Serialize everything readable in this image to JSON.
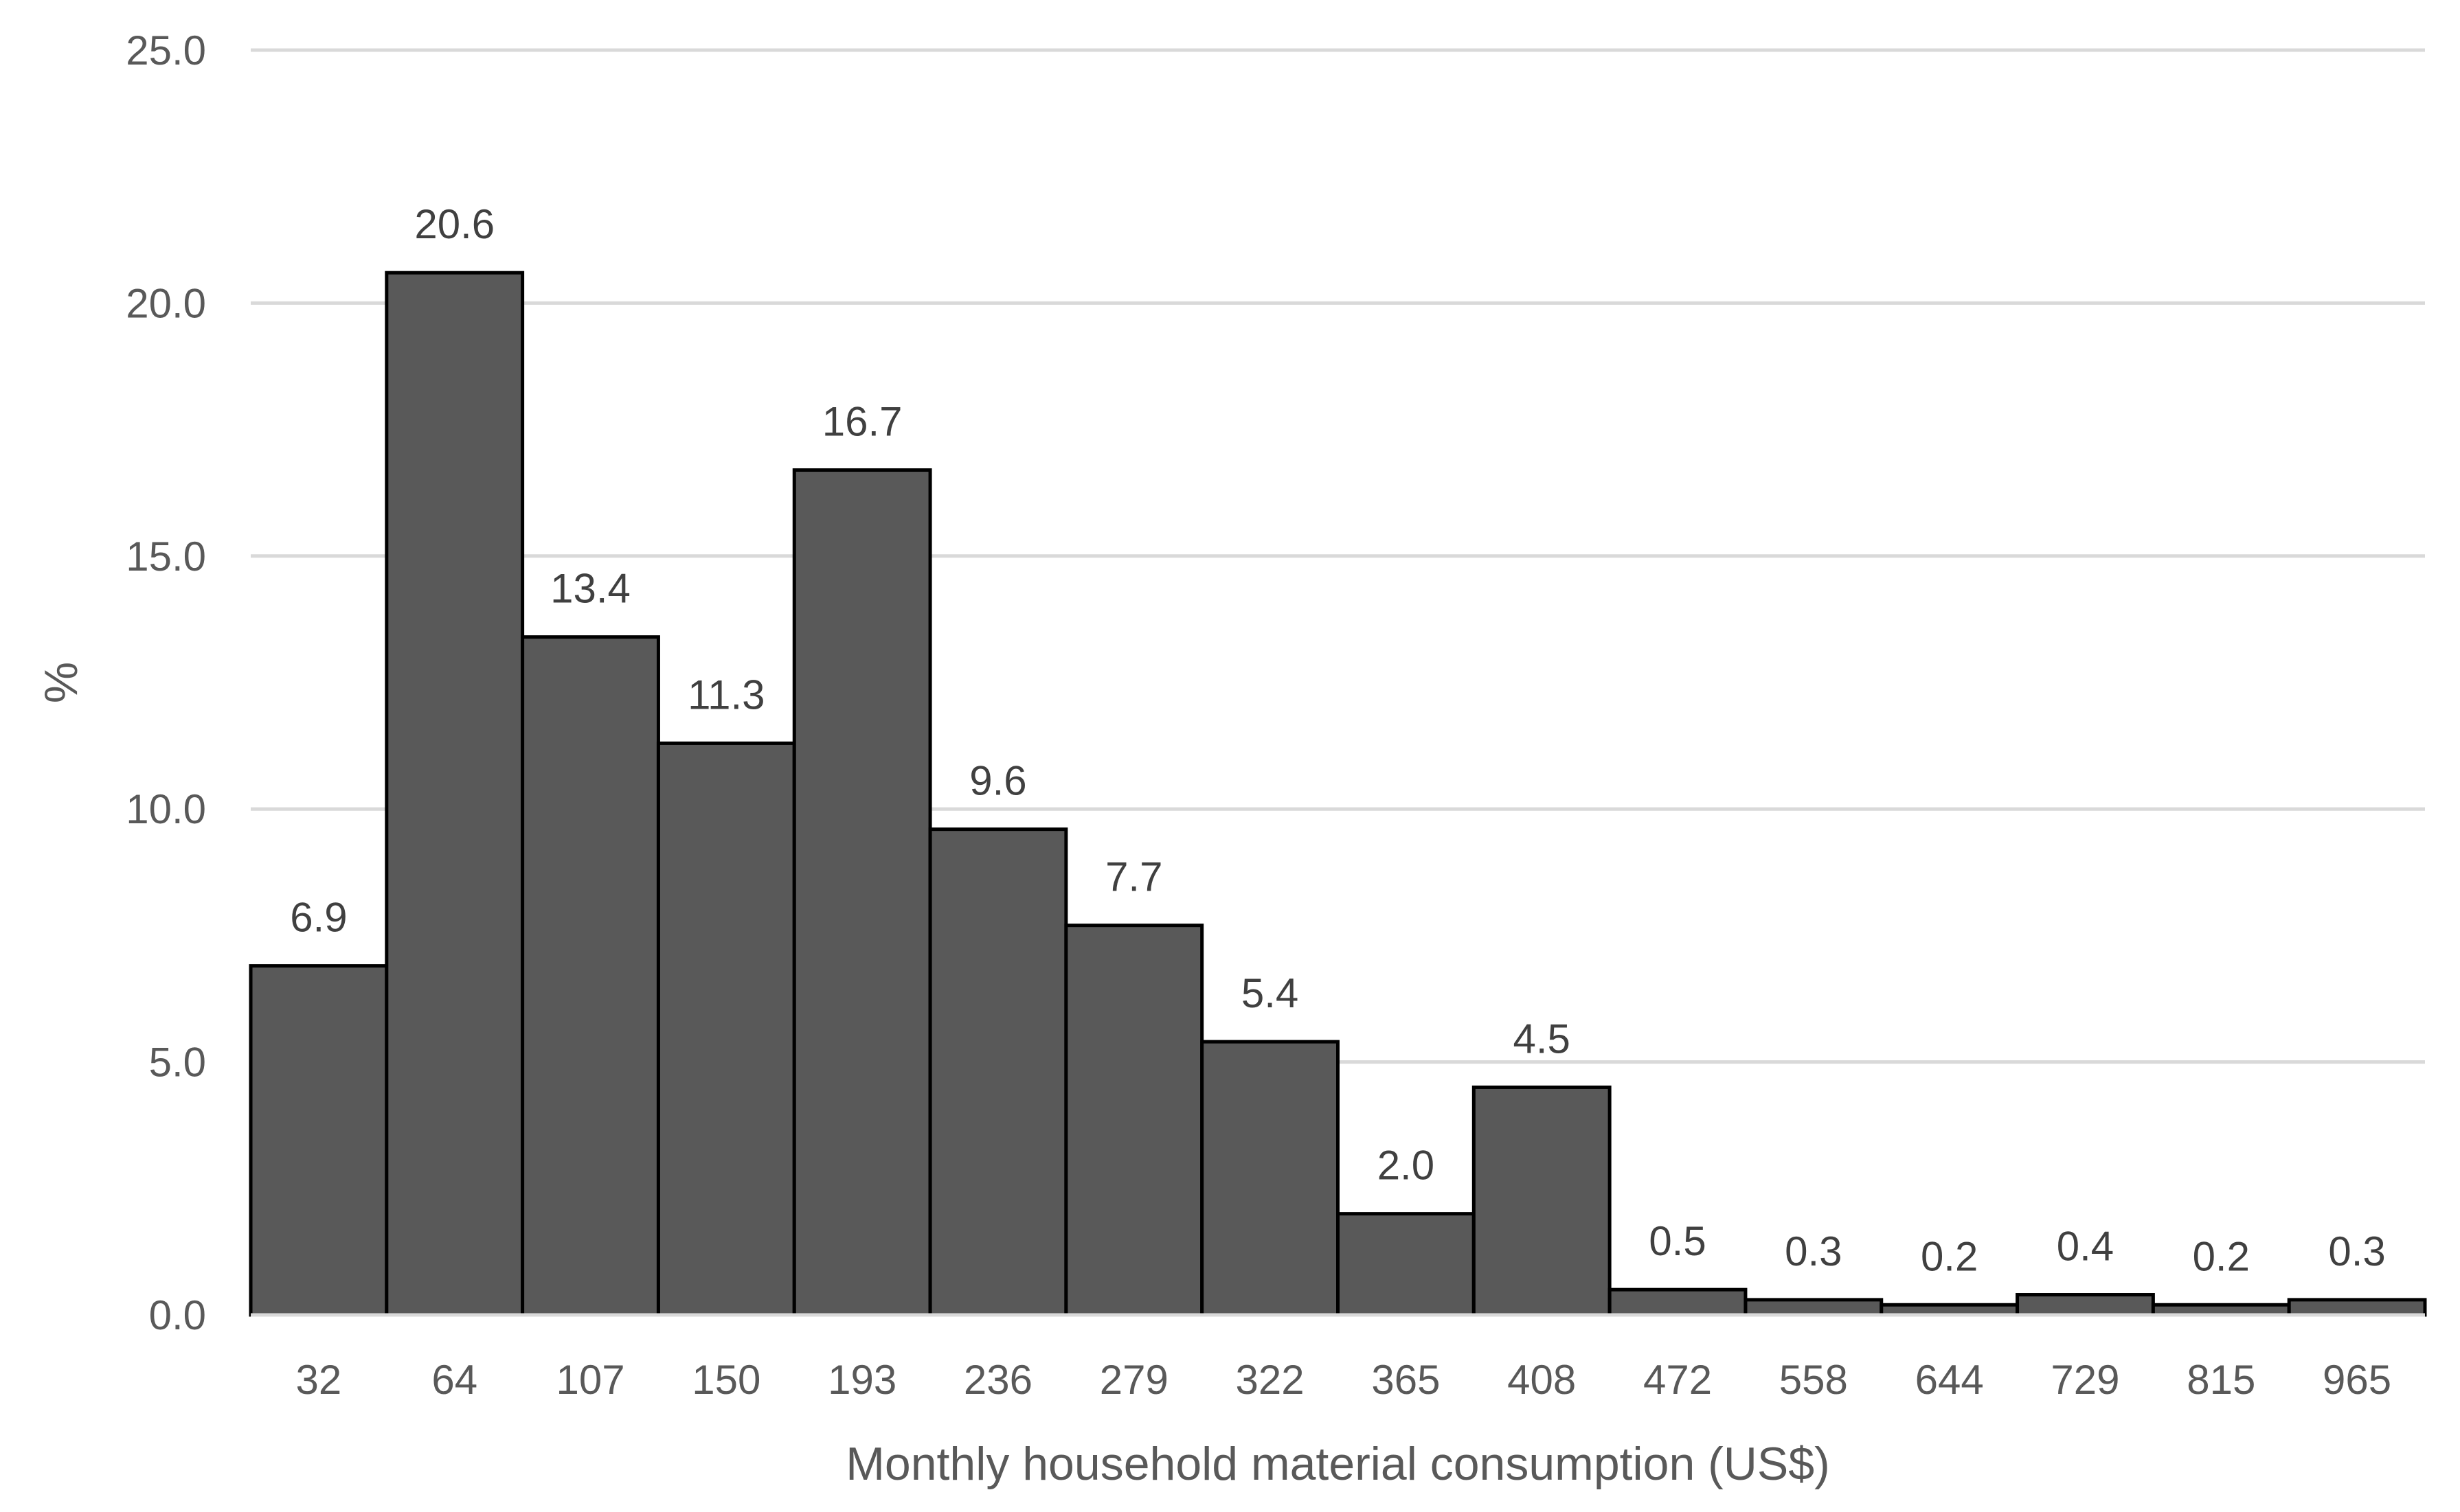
{
  "chart_data": {
    "type": "bar",
    "title": "",
    "xlabel": "Monthly household material consumption (US$)",
    "ylabel": "%",
    "categories": [
      "32",
      "64",
      "107",
      "150",
      "193",
      "236",
      "279",
      "322",
      "365",
      "408",
      "472",
      "558",
      "644",
      "729",
      "815",
      "965"
    ],
    "values": [
      6.9,
      20.6,
      13.4,
      11.3,
      16.7,
      9.6,
      7.7,
      5.4,
      2.0,
      4.5,
      0.5,
      0.3,
      0.2,
      0.4,
      0.2,
      0.3
    ],
    "data_labels": [
      "6.9",
      "20.6",
      "13.4",
      "11.3",
      "16.7",
      "9.6",
      "7.7",
      "5.4",
      "2.0",
      "4.5",
      "0.5",
      "0.3",
      "0.2",
      "0.4",
      "0.2",
      "0.3"
    ],
    "yticks": [
      0,
      5,
      10,
      15,
      20,
      25
    ],
    "ytick_labels": [
      "0.0",
      "5.0",
      "10.0",
      "15.0",
      "20.0",
      "25.0"
    ],
    "ylim": [
      0,
      25
    ],
    "grid": true,
    "legend": "none",
    "colors": {
      "bar_fill": "#595959",
      "bar_edge": "#000000",
      "gridline": "#d9d9d9",
      "tick_text": "#595959",
      "label_text": "#404040"
    }
  }
}
